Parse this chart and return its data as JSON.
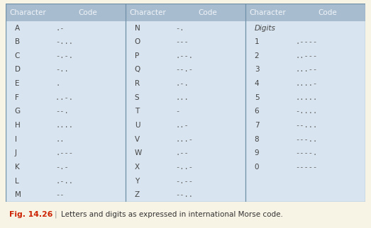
{
  "title": "Fig. 14.26",
  "caption": "Letters and digits as expressed in international Morse code.",
  "header_bg": "#a8bcd0",
  "table_bg": "#d8e4ef",
  "outer_bg": "#f7f3e5",
  "header_text_color": "#f0f4f8",
  "cell_char_color": "#444444",
  "cell_code_color": "#666666",
  "fig_label_color": "#cc2200",
  "caption_color": "#333333",
  "divider_color": "#7090a8",
  "col1": [
    [
      "A",
      ".-"
    ],
    [
      "B",
      "-..."
    ],
    [
      "C",
      "-.-."
    ],
    [
      "D",
      "-.."
    ],
    [
      "E",
      "."
    ],
    [
      "F",
      "..-. "
    ],
    [
      "G",
      "--."
    ],
    [
      "H",
      "...."
    ],
    [
      "I",
      ".."
    ],
    [
      "J",
      ".---"
    ],
    [
      "K",
      "-.-"
    ],
    [
      "L",
      ".-.."
    ],
    [
      "M",
      "--"
    ]
  ],
  "col2": [
    [
      "N",
      "-."
    ],
    [
      "O",
      "---"
    ],
    [
      "P",
      ".--."
    ],
    [
      "Q",
      "--.-"
    ],
    [
      "R",
      ".-."
    ],
    [
      "S",
      "..."
    ],
    [
      "T",
      "-"
    ],
    [
      "U",
      "..-"
    ],
    [
      "V",
      "...-"
    ],
    [
      "W",
      ".--"
    ],
    [
      "X",
      "-..-"
    ],
    [
      "Y",
      "-.--"
    ],
    [
      "Z",
      "--.."
    ]
  ],
  "col3_header": "Digits",
  "col3": [
    [
      "1",
      ".----"
    ],
    [
      "2",
      "..---"
    ],
    [
      "3",
      "...--"
    ],
    [
      "4",
      "....-"
    ],
    [
      "5",
      "....."
    ],
    [
      "6",
      "-...."
    ],
    [
      "7",
      "--..."
    ],
    [
      "8",
      "---.."
    ],
    [
      "9",
      "----."
    ],
    [
      "0",
      "-----"
    ]
  ]
}
